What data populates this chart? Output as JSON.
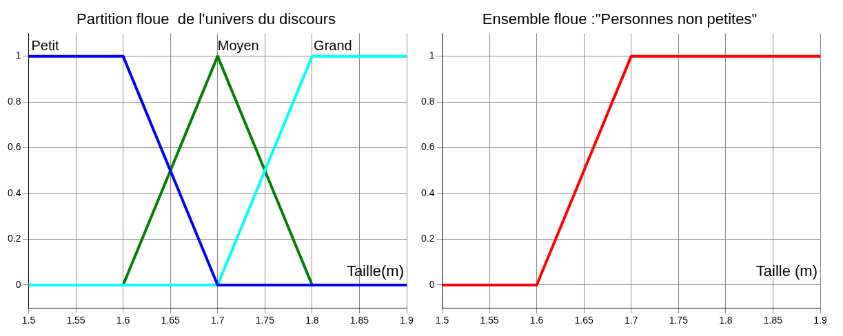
{
  "chart_data": [
    {
      "type": "line",
      "title": "Partition floue  de l'univers du discours",
      "xlabel": "Taille(m)",
      "xlim": [
        1.5,
        1.9
      ],
      "xticks": [
        1.5,
        1.55,
        1.6,
        1.65,
        1.7,
        1.75,
        1.8,
        1.85,
        1.9
      ],
      "ylim": [
        -0.1,
        1.1
      ],
      "yticks": [
        0,
        0.2,
        0.4,
        0.6,
        0.8,
        1
      ],
      "grid": true,
      "marker": "none",
      "line_style": "solid",
      "series": [
        {
          "name": "Petit",
          "color": "#0000ff",
          "x": [
            1.5,
            1.6,
            1.7,
            1.9
          ],
          "values": [
            1,
            1,
            0,
            0
          ]
        },
        {
          "name": "Grand",
          "color": "#00ffff",
          "x": [
            1.5,
            1.7,
            1.8,
            1.9
          ],
          "values": [
            0,
            0,
            1,
            1
          ]
        },
        {
          "name": "Moyen",
          "color": "#008000",
          "x": [
            1.5,
            1.6,
            1.7,
            1.8,
            1.9
          ],
          "values": [
            0,
            0,
            1,
            0,
            0
          ]
        }
      ]
    },
    {
      "type": "line",
      "title": "Ensemble floue :\"Personnes non petites\"",
      "xlabel": "Taille (m)",
      "xlim": [
        1.5,
        1.9
      ],
      "xticks": [
        1.5,
        1.55,
        1.6,
        1.65,
        1.7,
        1.75,
        1.8,
        1.85,
        1.9
      ],
      "ylim": [
        -0.1,
        1.1
      ],
      "yticks": [
        0,
        0.2,
        0.4,
        0.6,
        0.8,
        1
      ],
      "grid": true,
      "marker": "none",
      "line_style": "solid",
      "series": [
        {
          "color": "#ff0000",
          "x": [
            1.5,
            1.6,
            1.7,
            1.9
          ],
          "values": [
            0,
            0,
            1,
            1
          ]
        }
      ]
    }
  ]
}
